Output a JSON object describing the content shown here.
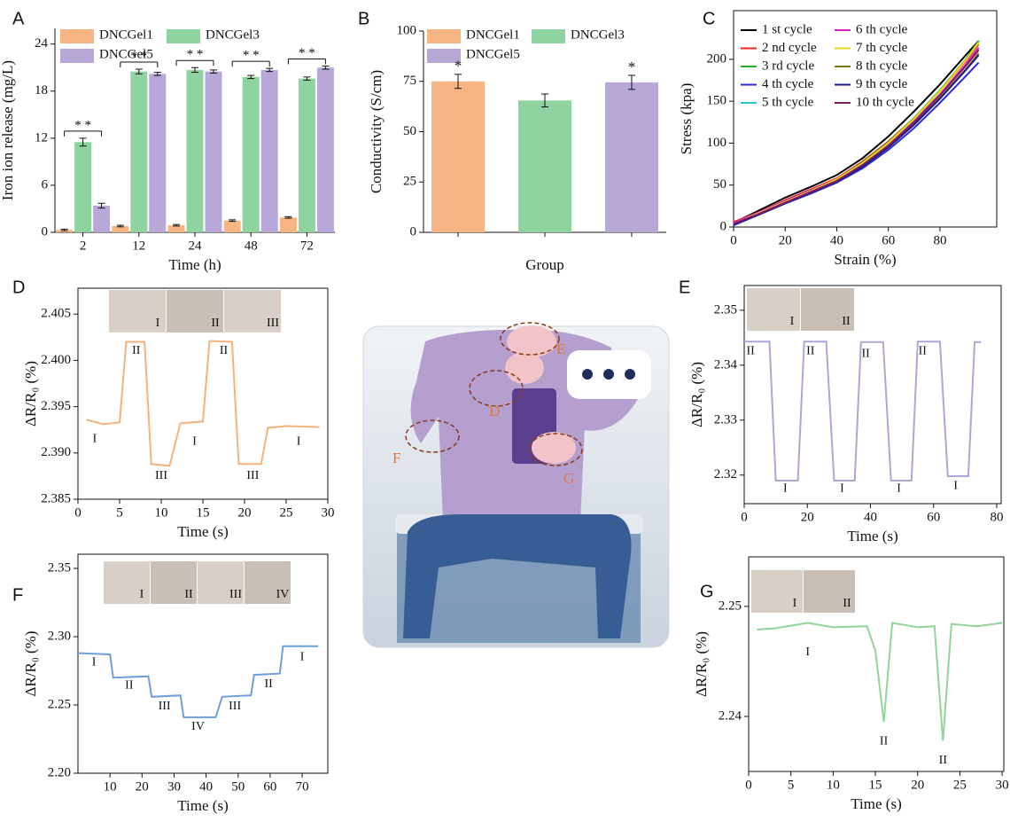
{
  "chart_data": [
    {
      "type": "bar",
      "panel": "A",
      "x_label": "Time (h)",
      "y_label": "Iron ion release (mg/L)",
      "categories": [
        "2",
        "12",
        "24",
        "48",
        "72"
      ],
      "series": [
        {
          "name": "DNCGel1",
          "color": "#f7b583",
          "values": [
            0.3,
            0.8,
            0.9,
            1.5,
            1.9
          ],
          "errors": [
            0.1,
            0.1,
            0.1,
            0.1,
            0.1
          ]
        },
        {
          "name": "DNCGel3",
          "color": "#8fd3a0",
          "values": [
            11.5,
            20.5,
            20.7,
            19.8,
            19.6
          ],
          "errors": [
            0.5,
            0.3,
            0.3,
            0.2,
            0.2
          ]
        },
        {
          "name": "DNCGel5",
          "color": "#b7a8d8",
          "values": [
            3.4,
            20.2,
            20.5,
            20.7,
            21.0
          ],
          "errors": [
            0.3,
            0.2,
            0.2,
            0.2,
            0.2
          ]
        }
      ],
      "significance": [
        {
          "category": 0,
          "label": "*   *"
        },
        {
          "category": 1,
          "label": "* *"
        },
        {
          "category": 2,
          "label": "* *"
        },
        {
          "category": 3,
          "label": "* *"
        },
        {
          "category": 4,
          "label": "* *"
        }
      ],
      "ylim": [
        0,
        26
      ],
      "yticks": [
        0,
        6,
        12,
        18,
        24
      ]
    },
    {
      "type": "bar",
      "panel": "B",
      "x_label": "Group",
      "y_label": "Conductivity (S/cm)",
      "categories": [
        null
      ],
      "series": [
        {
          "name": "DNCGel1",
          "color": "#f7b583",
          "values": [
            75
          ],
          "errors": [
            3.5
          ]
        },
        {
          "name": "DNCGel3",
          "color": "#8fd3a0",
          "values": [
            65.5
          ],
          "errors": [
            3.2
          ]
        },
        {
          "name": "DNCGel5",
          "color": "#b7a8d8",
          "values": [
            74.5
          ],
          "errors": [
            3.5
          ]
        }
      ],
      "significance": [
        {
          "series": 0,
          "label": "*"
        },
        {
          "series": 2,
          "label": "*"
        }
      ],
      "ylim": [
        0,
        100
      ],
      "yticks": [
        0,
        25,
        50,
        75,
        100
      ]
    },
    {
      "type": "line",
      "panel": "C",
      "x_label": "Strain (%)",
      "y_label": "Stress (kpa)",
      "x": [
        0,
        10,
        20,
        30,
        40,
        50,
        60,
        70,
        80,
        90,
        95
      ],
      "series": [
        {
          "name": "1 st cycle",
          "color": "#000000",
          "values": [
            5,
            20,
            35,
            48,
            62,
            82,
            108,
            138,
            170,
            205,
            222
          ]
        },
        {
          "name": "2 nd cycle",
          "color": "#ff2020",
          "values": [
            6,
            18,
            32,
            45,
            58,
            78,
            102,
            130,
            162,
            198,
            218
          ]
        },
        {
          "name": "3 rd cycle",
          "color": "#22b022",
          "values": [
            3,
            17,
            31,
            44,
            57,
            77,
            101,
            130,
            163,
            200,
            222
          ]
        },
        {
          "name": "4 th cycle",
          "color": "#2b2bd8",
          "values": [
            2,
            15,
            28,
            40,
            53,
            70,
            92,
            118,
            148,
            180,
            196
          ]
        },
        {
          "name": "5 th cycle",
          "color": "#22c8d8",
          "values": [
            4,
            17,
            30,
            43,
            56,
            74,
            98,
            126,
            158,
            193,
            212
          ]
        },
        {
          "name": "6 th cycle",
          "color": "#d020c0",
          "values": [
            5,
            18,
            31,
            44,
            57,
            75,
            99,
            127,
            158,
            194,
            214
          ]
        },
        {
          "name": "7 th cycle",
          "color": "#e8d820",
          "values": [
            4,
            17,
            30,
            43,
            57,
            76,
            100,
            129,
            162,
            199,
            220
          ]
        },
        {
          "name": "8 th cycle",
          "color": "#7a7a10",
          "values": [
            4,
            16,
            29,
            42,
            55,
            73,
            96,
            123,
            154,
            188,
            207
          ]
        },
        {
          "name": "9 th cycle",
          "color": "#1a1a80",
          "values": [
            3,
            15,
            28,
            41,
            54,
            72,
            95,
            122,
            153,
            187,
            205
          ]
        },
        {
          "name": "10 th cycle",
          "color": "#801a6a",
          "values": [
            4,
            16,
            29,
            42,
            55,
            74,
            97,
            125,
            157,
            192,
            211
          ]
        }
      ],
      "xlim": [
        0,
        102
      ],
      "xticks": [
        0,
        20,
        40,
        60,
        80
      ],
      "ylim": [
        0,
        258
      ],
      "yticks": [
        0,
        50,
        100,
        150,
        200
      ]
    },
    {
      "type": "line",
      "panel": "D",
      "x_label": "Time (s)",
      "y_label": "ΔR/R₀ (%)",
      "x": [
        1,
        3,
        5,
        5.8,
        8,
        8.8,
        11,
        12.3,
        15,
        15.8,
        18.5,
        19.3,
        22,
        22.8,
        25,
        29
      ],
      "series": [
        {
          "color": "#f5b27a",
          "values": [
            2.3936,
            2.3931,
            2.3933,
            2.402,
            2.402,
            2.3888,
            2.3886,
            2.3932,
            2.3934,
            2.4021,
            2.402,
            2.3888,
            2.3888,
            2.3927,
            2.3929,
            2.3928
          ]
        }
      ],
      "annotations": [
        {
          "text": "I",
          "x": 2,
          "y": 2.3915
        },
        {
          "text": "II",
          "x": 7,
          "y": 2.401
        },
        {
          "text": "III",
          "x": 10,
          "y": 2.3875
        },
        {
          "text": "I",
          "x": 14,
          "y": 2.3912
        },
        {
          "text": "II",
          "x": 17.5,
          "y": 2.401
        },
        {
          "text": "III",
          "x": 21,
          "y": 2.3875
        },
        {
          "text": "I",
          "x": 26.5,
          "y": 2.3912
        }
      ],
      "inset_labels": [
        "I",
        "II",
        "III"
      ],
      "xlim": [
        0,
        30
      ],
      "xticks": [
        0,
        5,
        10,
        15,
        20,
        25,
        30
      ],
      "ylim": [
        2.385,
        2.4078
      ],
      "yticks": [
        2.385,
        {
          "value": 2.39,
          "label": "2.390"
        },
        2.395,
        {
          "value": 2.4,
          "label": "2.400"
        },
        2.405
      ]
    },
    {
      "type": "line",
      "panel": "E",
      "x_label": "Time (s)",
      "y_label": "ΔR/R₀ (%)",
      "x": [
        0,
        8,
        10,
        17,
        19,
        26,
        28.5,
        35,
        37,
        44,
        46.5,
        53,
        55,
        62,
        64.5,
        71,
        73,
        75
      ],
      "series": [
        {
          "color": "#b3a3d6",
          "values": [
            2.3443,
            2.3443,
            2.319,
            2.319,
            2.3443,
            2.3443,
            2.319,
            2.319,
            2.3442,
            2.3442,
            2.319,
            2.319,
            2.3443,
            2.3443,
            2.3198,
            2.3198,
            2.3442,
            2.3442
          ]
        }
      ],
      "annotations": [
        {
          "text": "II",
          "x": 2,
          "y": 2.3425
        },
        {
          "text": "II",
          "x": 21,
          "y": 2.3425
        },
        {
          "text": "II",
          "x": 38.5,
          "y": 2.342
        },
        {
          "text": "II",
          "x": 56.5,
          "y": 2.3425
        },
        {
          "text": "I",
          "x": 13,
          "y": 2.3175
        },
        {
          "text": "I",
          "x": 31,
          "y": 2.3175
        },
        {
          "text": "I",
          "x": 49,
          "y": 2.3175
        },
        {
          "text": "I",
          "x": 67,
          "y": 2.318
        }
      ],
      "inset_labels": [
        "I",
        "II"
      ],
      "xlim": [
        0,
        81.4
      ],
      "xticks": [
        0,
        20,
        40,
        60,
        80
      ],
      "ylim": [
        2.3148,
        2.3545
      ],
      "yticks": [
        2.32,
        2.33,
        2.34,
        2.35
      ]
    },
    {
      "type": "line",
      "panel": "F",
      "x_label": "Time (s)",
      "y_label": "ΔR/R₀ (%)",
      "x": [
        0,
        10,
        11,
        22,
        23,
        32,
        33,
        43,
        45,
        54,
        55,
        63,
        64,
        75
      ],
      "series": [
        {
          "color": "#6f9fd8",
          "values": [
            2.288,
            2.287,
            2.27,
            2.271,
            2.256,
            2.257,
            2.241,
            2.241,
            2.256,
            2.257,
            2.272,
            2.273,
            2.293,
            2.293
          ]
        }
      ],
      "annotations": [
        {
          "text": "I",
          "x": 5,
          "y": 2.281
        },
        {
          "text": "II",
          "x": 16,
          "y": 2.264
        },
        {
          "text": "III",
          "x": 27,
          "y": 2.249
        },
        {
          "text": "IV",
          "x": 37.5,
          "y": 2.234
        },
        {
          "text": "III",
          "x": 49,
          "y": 2.249
        },
        {
          "text": "II",
          "x": 59.5,
          "y": 2.265
        },
        {
          "text": "I",
          "x": 70,
          "y": 2.285
        }
      ],
      "inset_labels": [
        "I",
        "II",
        "III",
        "IV"
      ],
      "xlim": [
        0,
        78
      ],
      "xticks": [
        10,
        20,
        30,
        40,
        50,
        60,
        70
      ],
      "ylim": [
        2.2,
        2.3604
      ],
      "yticks": [
        {
          "value": 2.2,
          "label": "2.20"
        },
        2.25,
        {
          "value": 2.3,
          "label": "2.30"
        },
        2.35
      ]
    },
    {
      "type": "line",
      "panel": "G",
      "x_label": "Time (s)",
      "y_label": "ΔR/R₀ (%)",
      "x": [
        1,
        3,
        7,
        10,
        14,
        15,
        16,
        17,
        20,
        22,
        23,
        24,
        27,
        30
      ],
      "series": [
        {
          "color": "#93d39c",
          "values": [
            2.2479,
            2.248,
            2.2485,
            2.2481,
            2.2482,
            2.246,
            2.2395,
            2.2485,
            2.2481,
            2.2482,
            2.2378,
            2.2484,
            2.2482,
            2.2485
          ]
        }
      ],
      "annotations": [
        {
          "text": "I",
          "x": 7,
          "y": 2.2458
        },
        {
          "text": "II",
          "x": 16,
          "y": 2.2377
        },
        {
          "text": "II",
          "x": 23,
          "y": 2.236
        }
      ],
      "inset_labels": [
        "I",
        "II"
      ],
      "xlim": [
        0,
        30.2
      ],
      "xticks": [
        0,
        5,
        10,
        15,
        20,
        25,
        30
      ],
      "ylim": [
        2.235,
        2.2545
      ],
      "yticks": [
        2.24,
        2.25
      ]
    }
  ],
  "illustration": {
    "labels": [
      "E",
      "D",
      "F",
      "G"
    ]
  }
}
